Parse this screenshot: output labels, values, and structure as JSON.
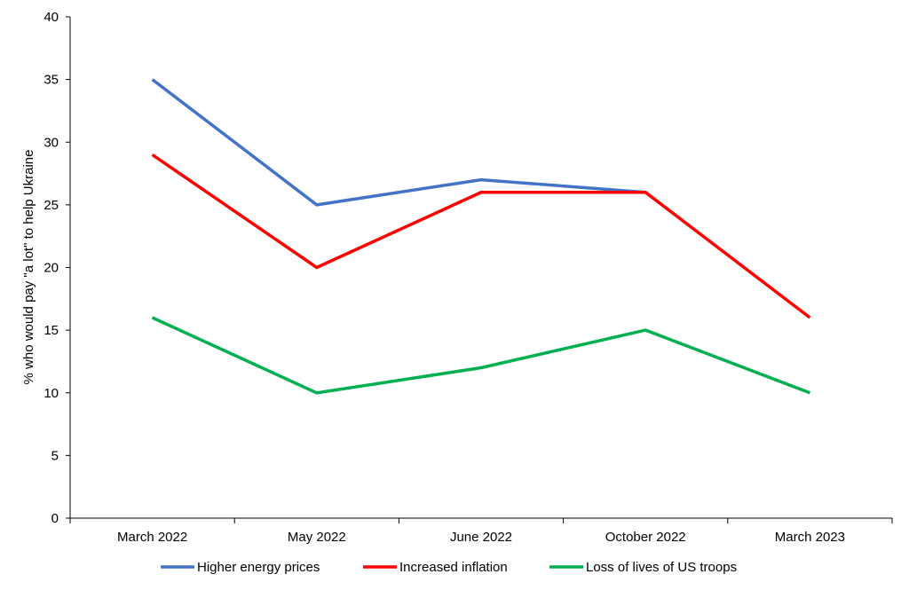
{
  "chart_data": {
    "type": "line",
    "title": "",
    "xlabel": "",
    "ylabel": "% who would pay \"a lot\" to help Ukraine",
    "categories": [
      "March 2022",
      "May 2022",
      "June 2022",
      "October 2022",
      "March 2023"
    ],
    "ylim": [
      0,
      40
    ],
    "yticks": [
      0,
      5,
      10,
      15,
      20,
      25,
      30,
      35,
      40
    ],
    "grid": false,
    "legend_position": "bottom",
    "series": [
      {
        "name": "Higher energy prices",
        "color": "#4472C4",
        "values": [
          35,
          25,
          27,
          26,
          null
        ]
      },
      {
        "name": "Increased inflation",
        "color": "#FF0000",
        "values": [
          29,
          20,
          26,
          26,
          16
        ]
      },
      {
        "name": "Loss of lives of US troops",
        "color": "#00B050",
        "values": [
          16,
          10,
          12,
          15,
          10
        ]
      }
    ]
  }
}
